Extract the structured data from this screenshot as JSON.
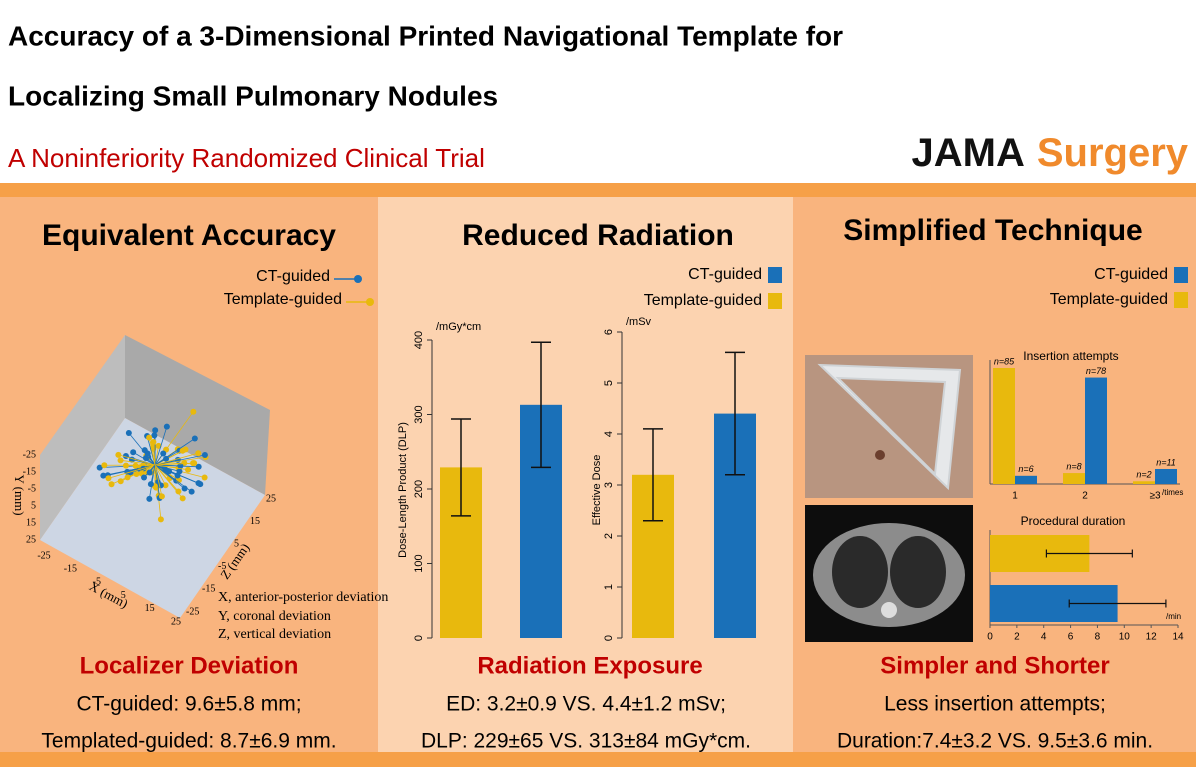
{
  "header": {
    "title_line1": "Accuracy of a 3-Dimensional Printed Navigational Template for",
    "title_line2": "Localizing Small Pulmonary Nodules",
    "subtitle": "A Noninferiority Randomized Clinical Trial",
    "journal": "JAMA",
    "journal_section": "Surgery"
  },
  "panels": [
    {
      "title": "Equivalent Accuracy",
      "series": [
        {
          "name": "CT-guided",
          "color": "#1a70b8"
        },
        {
          "name": "Template-guided",
          "color": "#e8b90d"
        }
      ],
      "figure": {
        "type": "scatter3d",
        "y_label": "Y (mm)",
        "x_label": "X (mm)",
        "z_label": "Z (mm)",
        "yticks": [
          -25,
          -15,
          -5,
          5,
          15,
          25
        ],
        "xticks": [
          -25,
          -15,
          -5,
          5,
          15,
          25
        ],
        "zticks": [
          -25,
          -15,
          -5,
          5,
          15,
          25
        ],
        "notes": [
          "X, anterior-posterior deviation",
          "Y, coronal deviation",
          "Z, vertical deviation"
        ]
      },
      "caption": "Localizer Deviation",
      "lines": [
        "CT-guided: 9.6±5.8 mm;",
        "Templated-guided: 8.7±6.9 mm."
      ]
    },
    {
      "title": "Reduced Radiation",
      "series": [
        {
          "name": "CT-guided",
          "color": "#1a70b8"
        },
        {
          "name": "Template-guided",
          "color": "#e8b90d"
        }
      ],
      "charts": [
        {
          "type": "bar",
          "unit": "/mGy*cm",
          "y_label": "Dose-Length Product (DLP)",
          "ylim": [
            0,
            400
          ],
          "yticks": [
            0,
            100,
            200,
            300,
            400
          ],
          "series": [
            {
              "value": 313,
              "error": 84
            },
            {
              "value": 229,
              "error": 65
            }
          ]
        },
        {
          "type": "bar",
          "unit": "/mSv",
          "y_label": "Effective Dose",
          "ylim": [
            0,
            6
          ],
          "yticks": [
            0,
            1,
            2,
            3,
            4,
            5,
            6
          ],
          "series": [
            {
              "value": 4.4,
              "error": 1.2
            },
            {
              "value": 3.2,
              "error": 0.9
            }
          ]
        }
      ],
      "caption": "Radiation Exposure",
      "lines": [
        "ED: 3.2±0.9 VS. 4.4±1.2 mSv;",
        "DLP: 229±65 VS. 313±84 mGy*cm."
      ]
    },
    {
      "title": "Simplified Technique",
      "series": [
        {
          "name": "CT-guided",
          "color": "#1a70b8"
        },
        {
          "name": "Template-guided",
          "color": "#e8b90d"
        }
      ],
      "charts": [
        {
          "type": "grouped_bar",
          "title": "Insertion attempts",
          "unit": "/times",
          "categories": [
            "1",
            "2",
            "≥3"
          ],
          "series": [
            {
              "values": [
                6,
                78,
                11
              ],
              "value_labels": [
                "n=6",
                "n=78",
                "n=11"
              ]
            },
            {
              "values": [
                85,
                8,
                2
              ],
              "value_labels": [
                "n=85",
                "n=8",
                "n=2"
              ]
            }
          ]
        },
        {
          "type": "hbar",
          "title": "Procedural duration",
          "unit": "/min",
          "xlim": [
            0,
            14
          ],
          "xticks": [
            0,
            2,
            4,
            6,
            8,
            10,
            12,
            14
          ],
          "series": [
            {
              "value": 9.5,
              "error": 3.6
            },
            {
              "value": 7.4,
              "error": 3.2
            }
          ]
        }
      ],
      "caption": "Simpler and Shorter",
      "lines": [
        "Less insertion attempts;",
        "Duration:7.4±3.2 VS. 9.5±3.6 min."
      ]
    }
  ]
}
